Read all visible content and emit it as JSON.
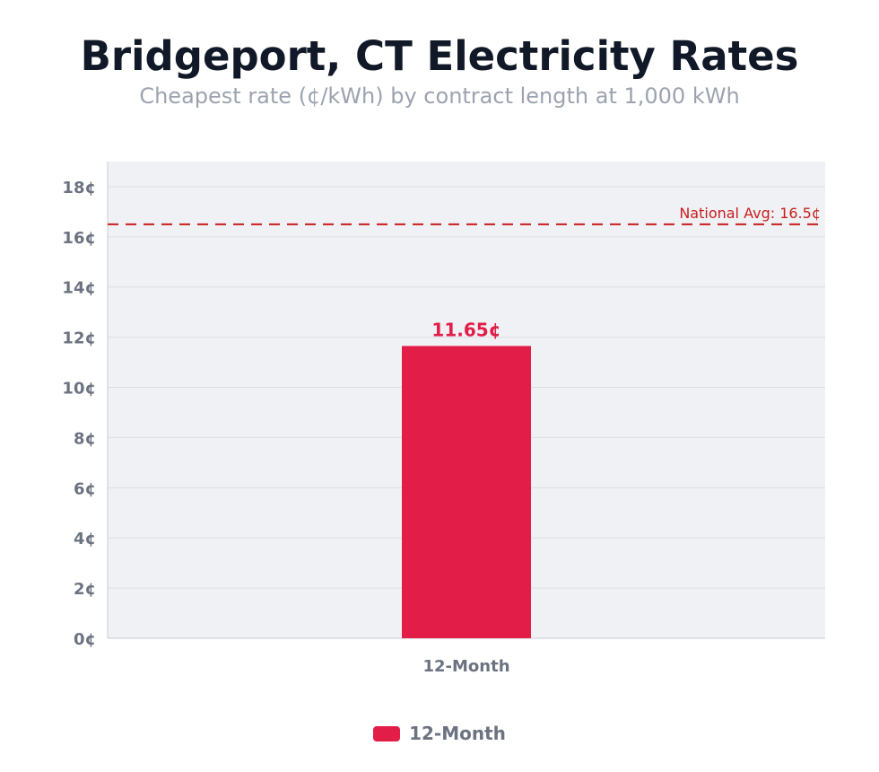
{
  "chart_data": {
    "type": "bar",
    "title": "Bridgeport, CT Electricity Rates",
    "subtitle": "Cheapest rate (¢/kWh) by contract length at 1,000 kWh",
    "categories": [
      "12-Month"
    ],
    "series": [
      {
        "name": "12-Month",
        "values": [
          11.65
        ],
        "color": "#e11d48"
      }
    ],
    "data_labels": [
      "11.65¢"
    ],
    "y_ticks": [
      0,
      2,
      4,
      6,
      8,
      10,
      12,
      14,
      16,
      18
    ],
    "y_tick_labels": [
      "0¢",
      "2¢",
      "4¢",
      "6¢",
      "8¢",
      "10¢",
      "12¢",
      "14¢",
      "16¢",
      "18¢"
    ],
    "ylim": [
      0,
      19
    ],
    "reference_line": {
      "value": 16.5,
      "label": "National Avg: 16.5¢",
      "color": "#c81e1e",
      "style": "dashed"
    },
    "grid": true,
    "legend": {
      "position": "bottom-center",
      "entries": [
        "12-Month"
      ]
    },
    "colors": {
      "plot_background": "#f0f1f5",
      "grid": "#dcdee3",
      "axis_text": "#6b7280"
    }
  }
}
